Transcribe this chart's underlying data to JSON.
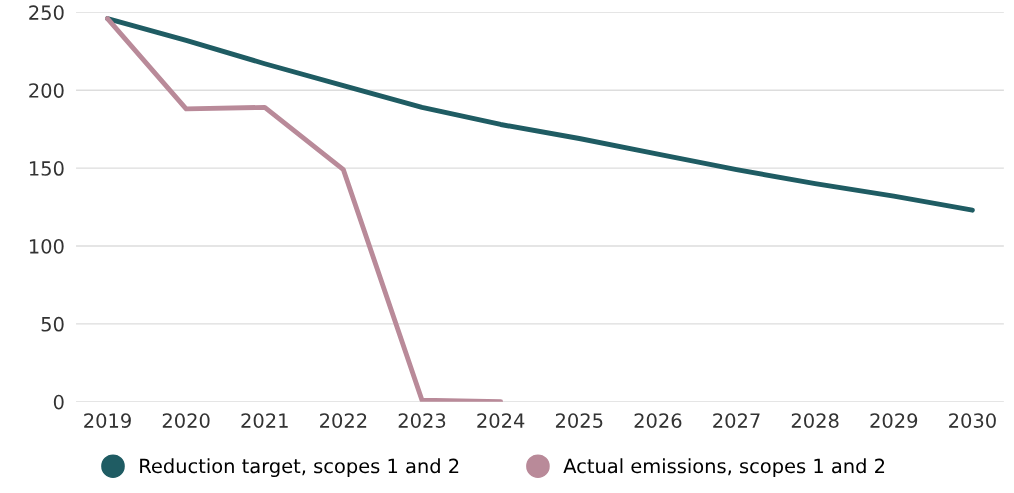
{
  "chart_data": {
    "type": "line",
    "categories": [
      "2019",
      "2020",
      "2021",
      "2022",
      "2023",
      "2024",
      "2025",
      "2026",
      "2027",
      "2028",
      "2029",
      "2030"
    ],
    "series": [
      {
        "name": "Reduction target, scopes 1 and 2",
        "color": "#1f5c63",
        "values": [
          246,
          232,
          217,
          203,
          189,
          178,
          169,
          159,
          149,
          140,
          132,
          123
        ]
      },
      {
        "name": "Actual emissions, scopes 1 and 2",
        "color": "#b98a99",
        "values": [
          246,
          188,
          189,
          149,
          1,
          0,
          null,
          null,
          null,
          null,
          null,
          null
        ]
      }
    ],
    "ylim": [
      0,
      250
    ],
    "yticks": [
      0,
      50,
      100,
      150,
      200,
      250
    ],
    "grid": "y",
    "legend": "bottom",
    "marker": "none",
    "line_style": "solid"
  }
}
